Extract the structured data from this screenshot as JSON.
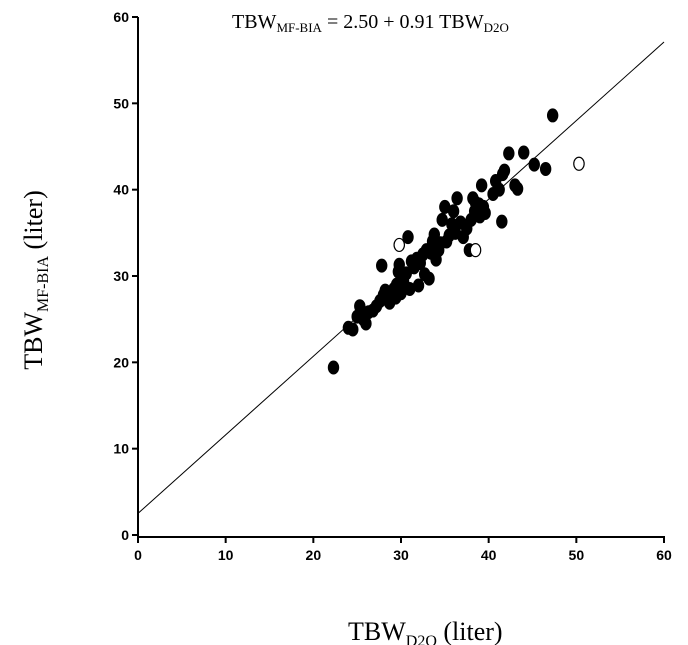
{
  "chart_data": {
    "type": "scatter",
    "title": {
      "prefix": "TBW",
      "prefix_sub": "MF-BIA",
      "equation": " = 2.50 + 0.91 TBW",
      "equation_sub": "D2O"
    },
    "xlabel": {
      "text": "TBW",
      "sub": "D2O",
      "suffix": " (liter)"
    },
    "ylabel": {
      "text": "TBW",
      "sub": "MF-BIA",
      "suffix": " (liter)"
    },
    "xlim": [
      0,
      60
    ],
    "ylim": [
      0,
      60
    ],
    "xticks": [
      0,
      10,
      20,
      30,
      40,
      50,
      60
    ],
    "yticks": [
      0,
      10,
      20,
      30,
      40,
      50,
      60
    ],
    "grid": false,
    "regression": {
      "intercept": 2.5,
      "slope": 0.91
    },
    "series": [
      {
        "marker": "filled",
        "color": "#000000",
        "points": [
          [
            22.3,
            19.4
          ],
          [
            24.0,
            24.0
          ],
          [
            24.5,
            23.8
          ],
          [
            25.0,
            25.3
          ],
          [
            25.3,
            26.5
          ],
          [
            25.7,
            25.0
          ],
          [
            26.0,
            24.5
          ],
          [
            26.3,
            25.8
          ],
          [
            26.8,
            26.0
          ],
          [
            27.2,
            26.5
          ],
          [
            27.6,
            27.1
          ],
          [
            27.8,
            31.2
          ],
          [
            28.0,
            27.8
          ],
          [
            28.2,
            28.3
          ],
          [
            28.5,
            27.3
          ],
          [
            28.7,
            26.9
          ],
          [
            29.0,
            27.8
          ],
          [
            29.2,
            28.5
          ],
          [
            29.4,
            27.5
          ],
          [
            29.5,
            29.0
          ],
          [
            29.7,
            30.5
          ],
          [
            29.8,
            31.3
          ],
          [
            30.0,
            28.0
          ],
          [
            30.3,
            29.3
          ],
          [
            30.6,
            30.3
          ],
          [
            30.8,
            34.5
          ],
          [
            31.0,
            28.5
          ],
          [
            31.2,
            31.7
          ],
          [
            31.5,
            31.0
          ],
          [
            31.8,
            32.0
          ],
          [
            32.0,
            28.9
          ],
          [
            32.2,
            31.5
          ],
          [
            32.5,
            32.5
          ],
          [
            32.7,
            30.2
          ],
          [
            32.9,
            33.0
          ],
          [
            33.2,
            29.7
          ],
          [
            33.4,
            32.7
          ],
          [
            33.6,
            34.0
          ],
          [
            33.8,
            34.8
          ],
          [
            34.0,
            31.9
          ],
          [
            34.3,
            33.0
          ],
          [
            34.5,
            33.8
          ],
          [
            34.7,
            36.5
          ],
          [
            35.0,
            38.0
          ],
          [
            35.2,
            34.0
          ],
          [
            35.5,
            34.7
          ],
          [
            35.8,
            36.0
          ],
          [
            36.0,
            37.5
          ],
          [
            36.2,
            35.0
          ],
          [
            36.4,
            39.0
          ],
          [
            36.8,
            36.2
          ],
          [
            37.1,
            34.5
          ],
          [
            37.5,
            35.5
          ],
          [
            37.8,
            33.0
          ],
          [
            38.0,
            36.5
          ],
          [
            38.2,
            39.0
          ],
          [
            38.4,
            37.5
          ],
          [
            38.5,
            38.5
          ],
          [
            38.7,
            37.8
          ],
          [
            38.9,
            38.3
          ],
          [
            39.0,
            36.9
          ],
          [
            39.2,
            40.5
          ],
          [
            39.4,
            38.0
          ],
          [
            39.6,
            37.3
          ],
          [
            40.5,
            39.5
          ],
          [
            40.8,
            41.0
          ],
          [
            41.2,
            40.0
          ],
          [
            41.5,
            36.3
          ],
          [
            41.6,
            41.8
          ],
          [
            41.8,
            42.2
          ],
          [
            42.3,
            44.2
          ],
          [
            43.0,
            40.5
          ],
          [
            43.3,
            40.1
          ],
          [
            44.0,
            44.3
          ],
          [
            45.2,
            42.9
          ],
          [
            46.5,
            42.4
          ],
          [
            47.3,
            48.6
          ]
        ]
      },
      {
        "marker": "open",
        "color": "#000000",
        "points": [
          [
            29.8,
            33.6
          ],
          [
            38.5,
            33.0
          ],
          [
            50.3,
            43.0
          ]
        ]
      }
    ]
  }
}
